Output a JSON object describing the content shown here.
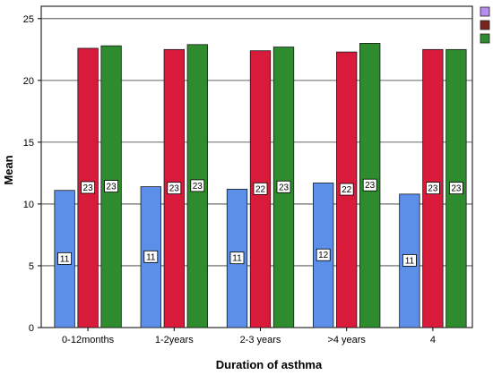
{
  "chart_data": {
    "type": "bar",
    "xlabel": "Duration of asthma",
    "ylabel": "Mean",
    "categories": [
      "0-12months",
      "1-2years",
      "2-3 years",
      ">4 years",
      "4"
    ],
    "ylim": [
      0,
      26
    ],
    "yticks": [
      0,
      5,
      10,
      15,
      20,
      25
    ],
    "grid": true,
    "legend_position": "top-right",
    "series": [
      {
        "color": "#5b8fe8",
        "values": [
          11.1,
          11.4,
          11.2,
          11.7,
          10.8
        ],
        "labels": [
          "11",
          "11",
          "11",
          "12",
          "11"
        ]
      },
      {
        "color": "#d81b3a",
        "values": [
          22.6,
          22.5,
          22.4,
          22.3,
          22.5
        ],
        "labels": [
          "23",
          "23",
          "22",
          "22",
          "23"
        ]
      },
      {
        "color": "#2e8b2e",
        "values": [
          22.8,
          22.9,
          22.7,
          23.0,
          22.5
        ],
        "labels": [
          "23",
          "23",
          "23",
          "23",
          "23"
        ]
      }
    ],
    "legend_swatch_colors": [
      "#b68cf0",
      "#7a2420",
      "#2e8b2e"
    ]
  }
}
